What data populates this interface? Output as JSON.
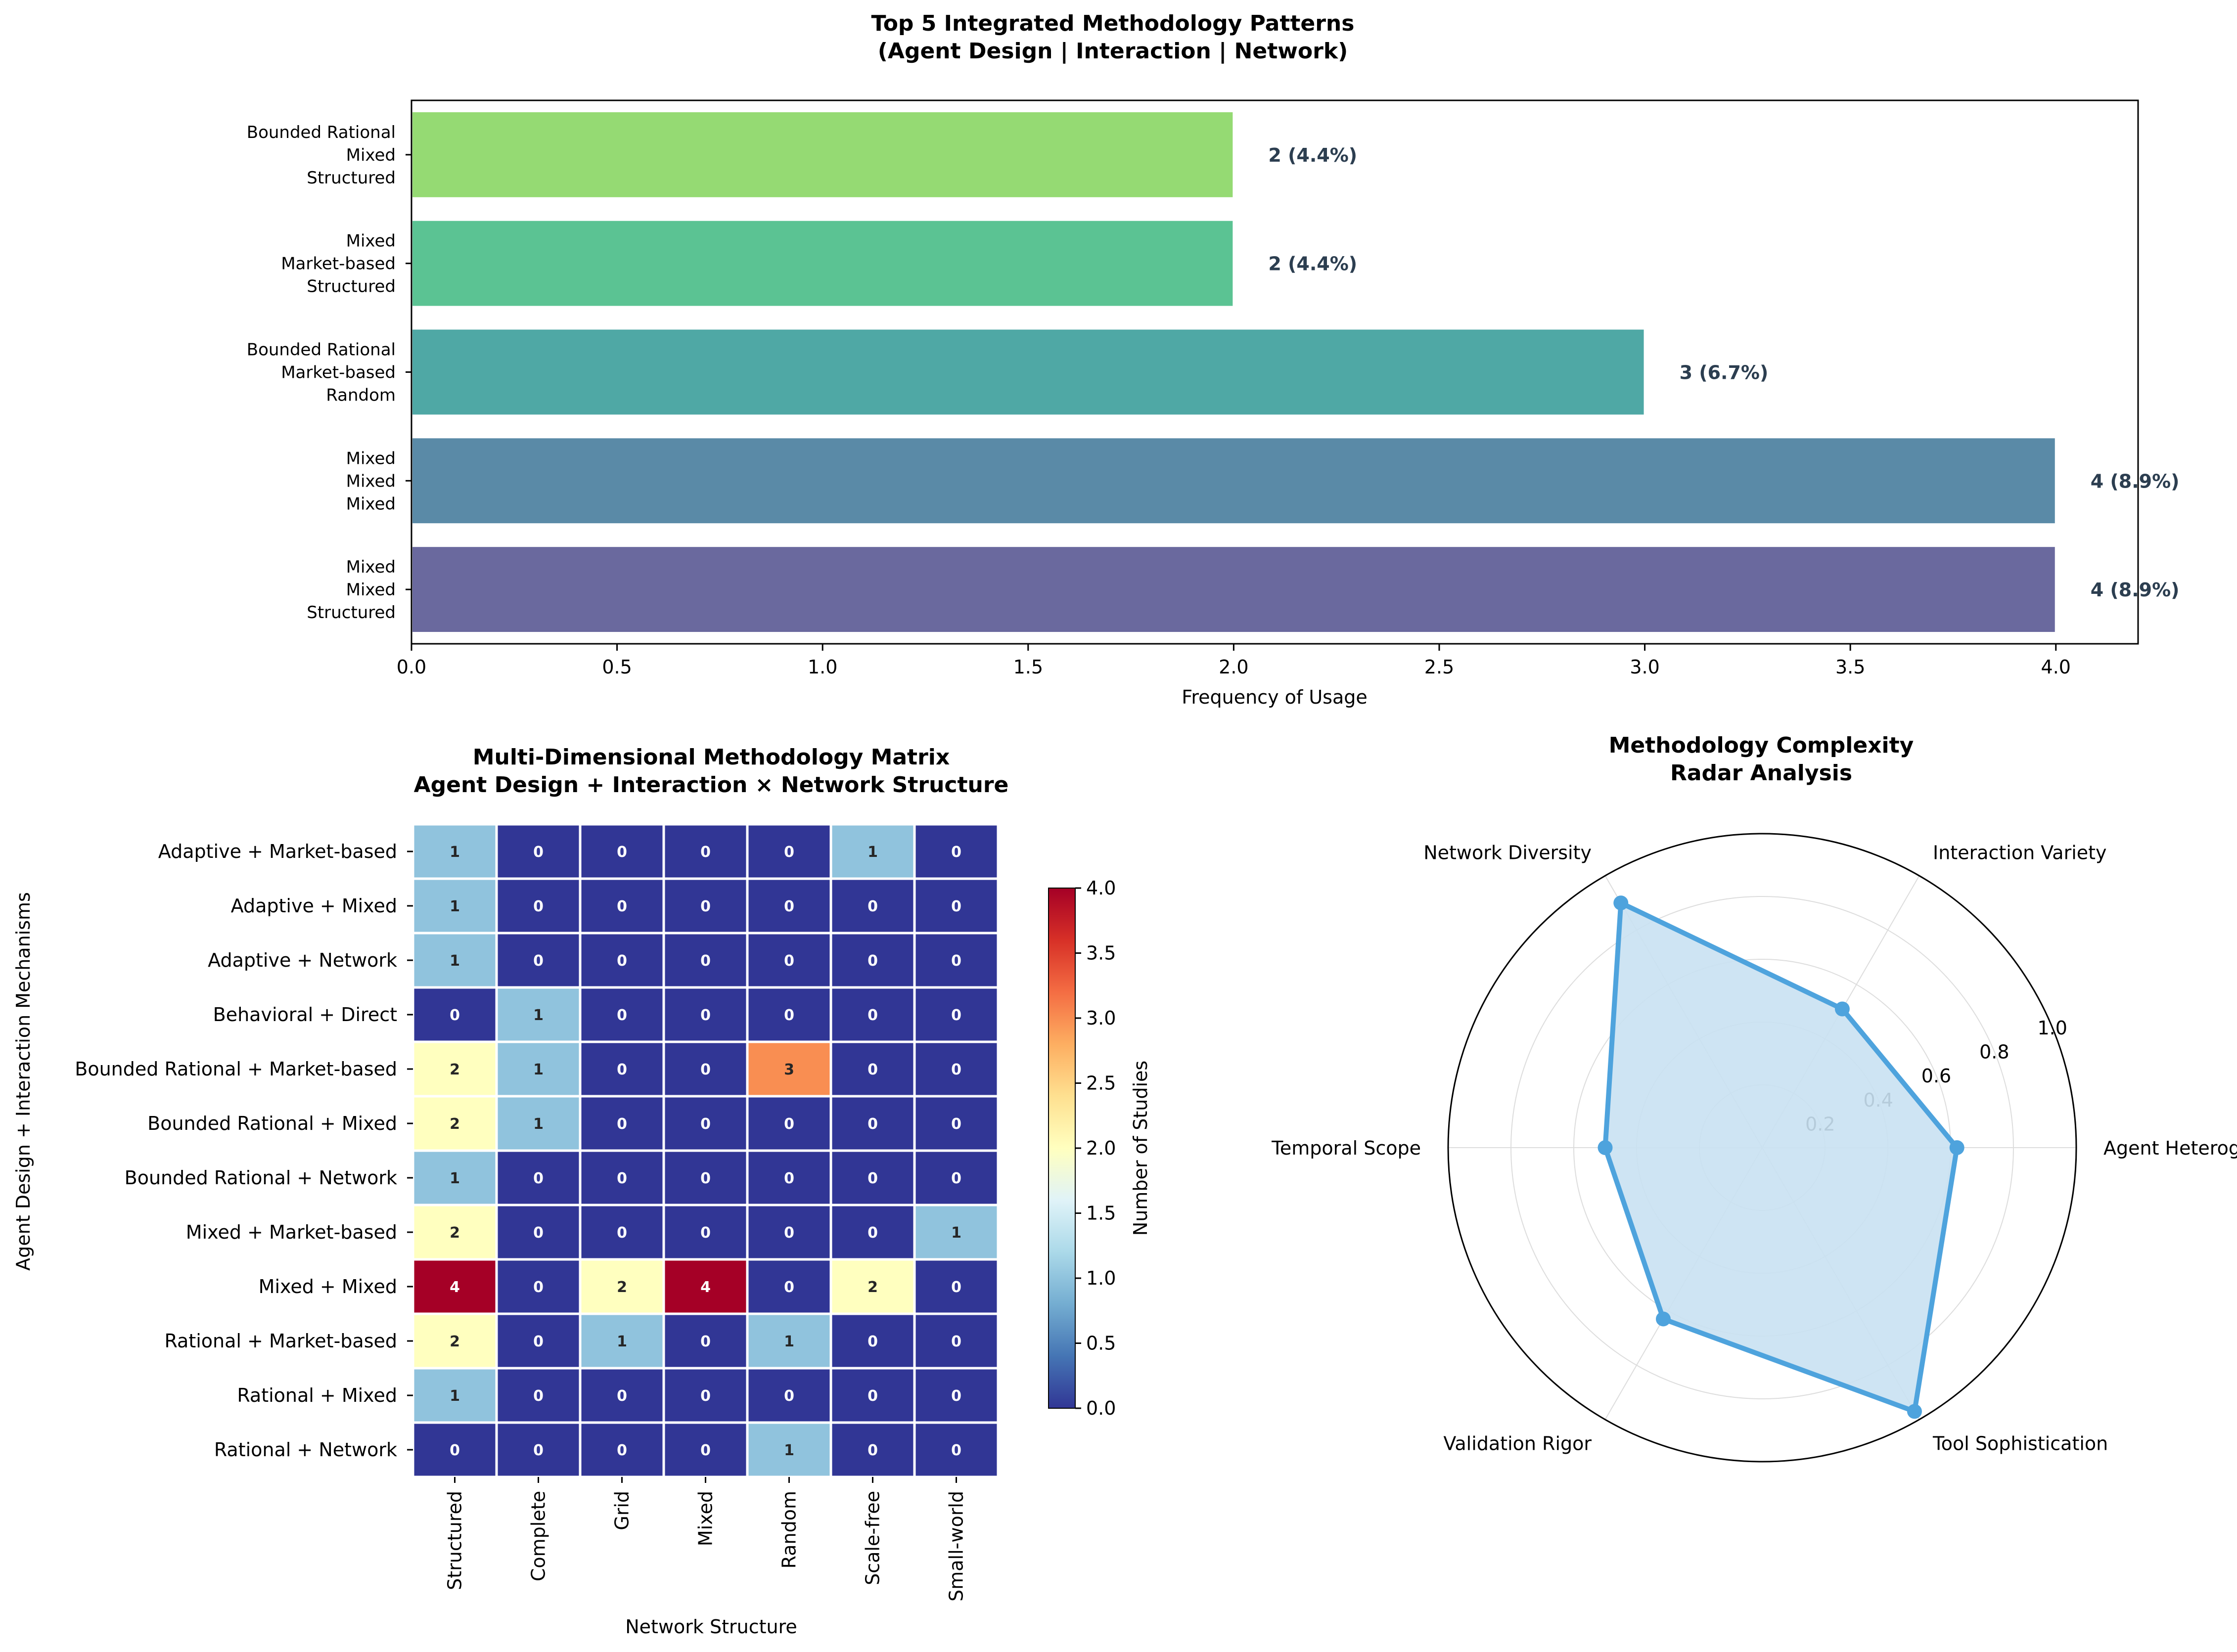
{
  "chart_data": [
    {
      "type": "bar",
      "orientation": "horizontal",
      "title": "Top 5 Integrated Methodology Patterns\n(Agent Design | Interaction | Network)",
      "xlabel": "Frequency of Usage",
      "ylabel": "",
      "xlim": [
        0,
        4.2
      ],
      "xticks": [
        "0.0",
        "0.5",
        "1.0",
        "1.5",
        "2.0",
        "2.5",
        "3.0",
        "3.5",
        "4.0"
      ],
      "categories": [
        "Mixed\nMixed\nStructured",
        "Mixed\nMixed\nMixed",
        "Bounded Rational\nMarket-based\nRandom",
        "Mixed\nMarket-based\nStructured",
        "Bounded Rational\nMixed\nStructured"
      ],
      "values": [
        4,
        4,
        3,
        2,
        2
      ],
      "value_labels": [
        "4 (8.9%)",
        "4 (8.9%)",
        "3 (6.7%)",
        "2 (4.4%)",
        "2 (4.4%)"
      ],
      "colors": [
        "#6a699e",
        "#5a8aa7",
        "#4fa8a5",
        "#5bc393",
        "#95da73"
      ],
      "grid": false
    },
    {
      "type": "heatmap",
      "title": "Multi-Dimensional Methodology Matrix\nAgent Design + Interaction × Network Structure",
      "xlabel": "Network Structure",
      "ylabel": "Agent Design + Interaction Mechanisms",
      "x": [
        "Structured",
        "Complete",
        "Grid",
        "Mixed",
        "Random",
        "Scale-free",
        "Small-world"
      ],
      "y": [
        "Adaptive + Market-based",
        "Adaptive + Mixed",
        "Adaptive + Network",
        "Behavioral + Direct",
        "Bounded Rational + Market-based",
        "Bounded Rational + Mixed",
        "Bounded Rational + Network",
        "Mixed + Market-based",
        "Mixed + Mixed",
        "Rational + Market-based",
        "Rational + Mixed",
        "Rational + Network"
      ],
      "values": [
        [
          1,
          0,
          0,
          0,
          0,
          1,
          0
        ],
        [
          1,
          0,
          0,
          0,
          0,
          0,
          0
        ],
        [
          1,
          0,
          0,
          0,
          0,
          0,
          0
        ],
        [
          0,
          1,
          0,
          0,
          0,
          0,
          0
        ],
        [
          2,
          1,
          0,
          0,
          3,
          0,
          0
        ],
        [
          2,
          1,
          0,
          0,
          0,
          0,
          0
        ],
        [
          1,
          0,
          0,
          0,
          0,
          0,
          0
        ],
        [
          2,
          0,
          0,
          0,
          0,
          0,
          1
        ],
        [
          4,
          0,
          2,
          4,
          0,
          2,
          0
        ],
        [
          2,
          0,
          1,
          0,
          1,
          0,
          0
        ],
        [
          1,
          0,
          0,
          0,
          0,
          0,
          0
        ],
        [
          0,
          0,
          0,
          0,
          1,
          0,
          0
        ]
      ],
      "colormap": "RdYlBu_r",
      "vmin": 0,
      "vmax": 4,
      "colorbar_label": "Number of Studies",
      "colorbar_ticks": [
        "0.0",
        "0.5",
        "1.0",
        "1.5",
        "2.0",
        "2.5",
        "3.0",
        "3.5",
        "4.0"
      ]
    },
    {
      "type": "radar",
      "title": "Methodology Complexity\nRadar Analysis",
      "axes": [
        "Agent Heterogeneity",
        "Interaction Variety",
        "Network Diversity",
        "Temporal Scope",
        "Validation Rigor",
        "Tool Sophistication"
      ],
      "values": [
        0.62,
        0.51,
        0.9,
        0.5,
        0.63,
        0.97
      ],
      "rlim": [
        0,
        1.0
      ],
      "rticks": [
        "0.2",
        "0.4",
        "0.6",
        "0.8",
        "1.0"
      ],
      "color": "#4ea3dd",
      "fill_color": "#c9e1f2"
    }
  ]
}
